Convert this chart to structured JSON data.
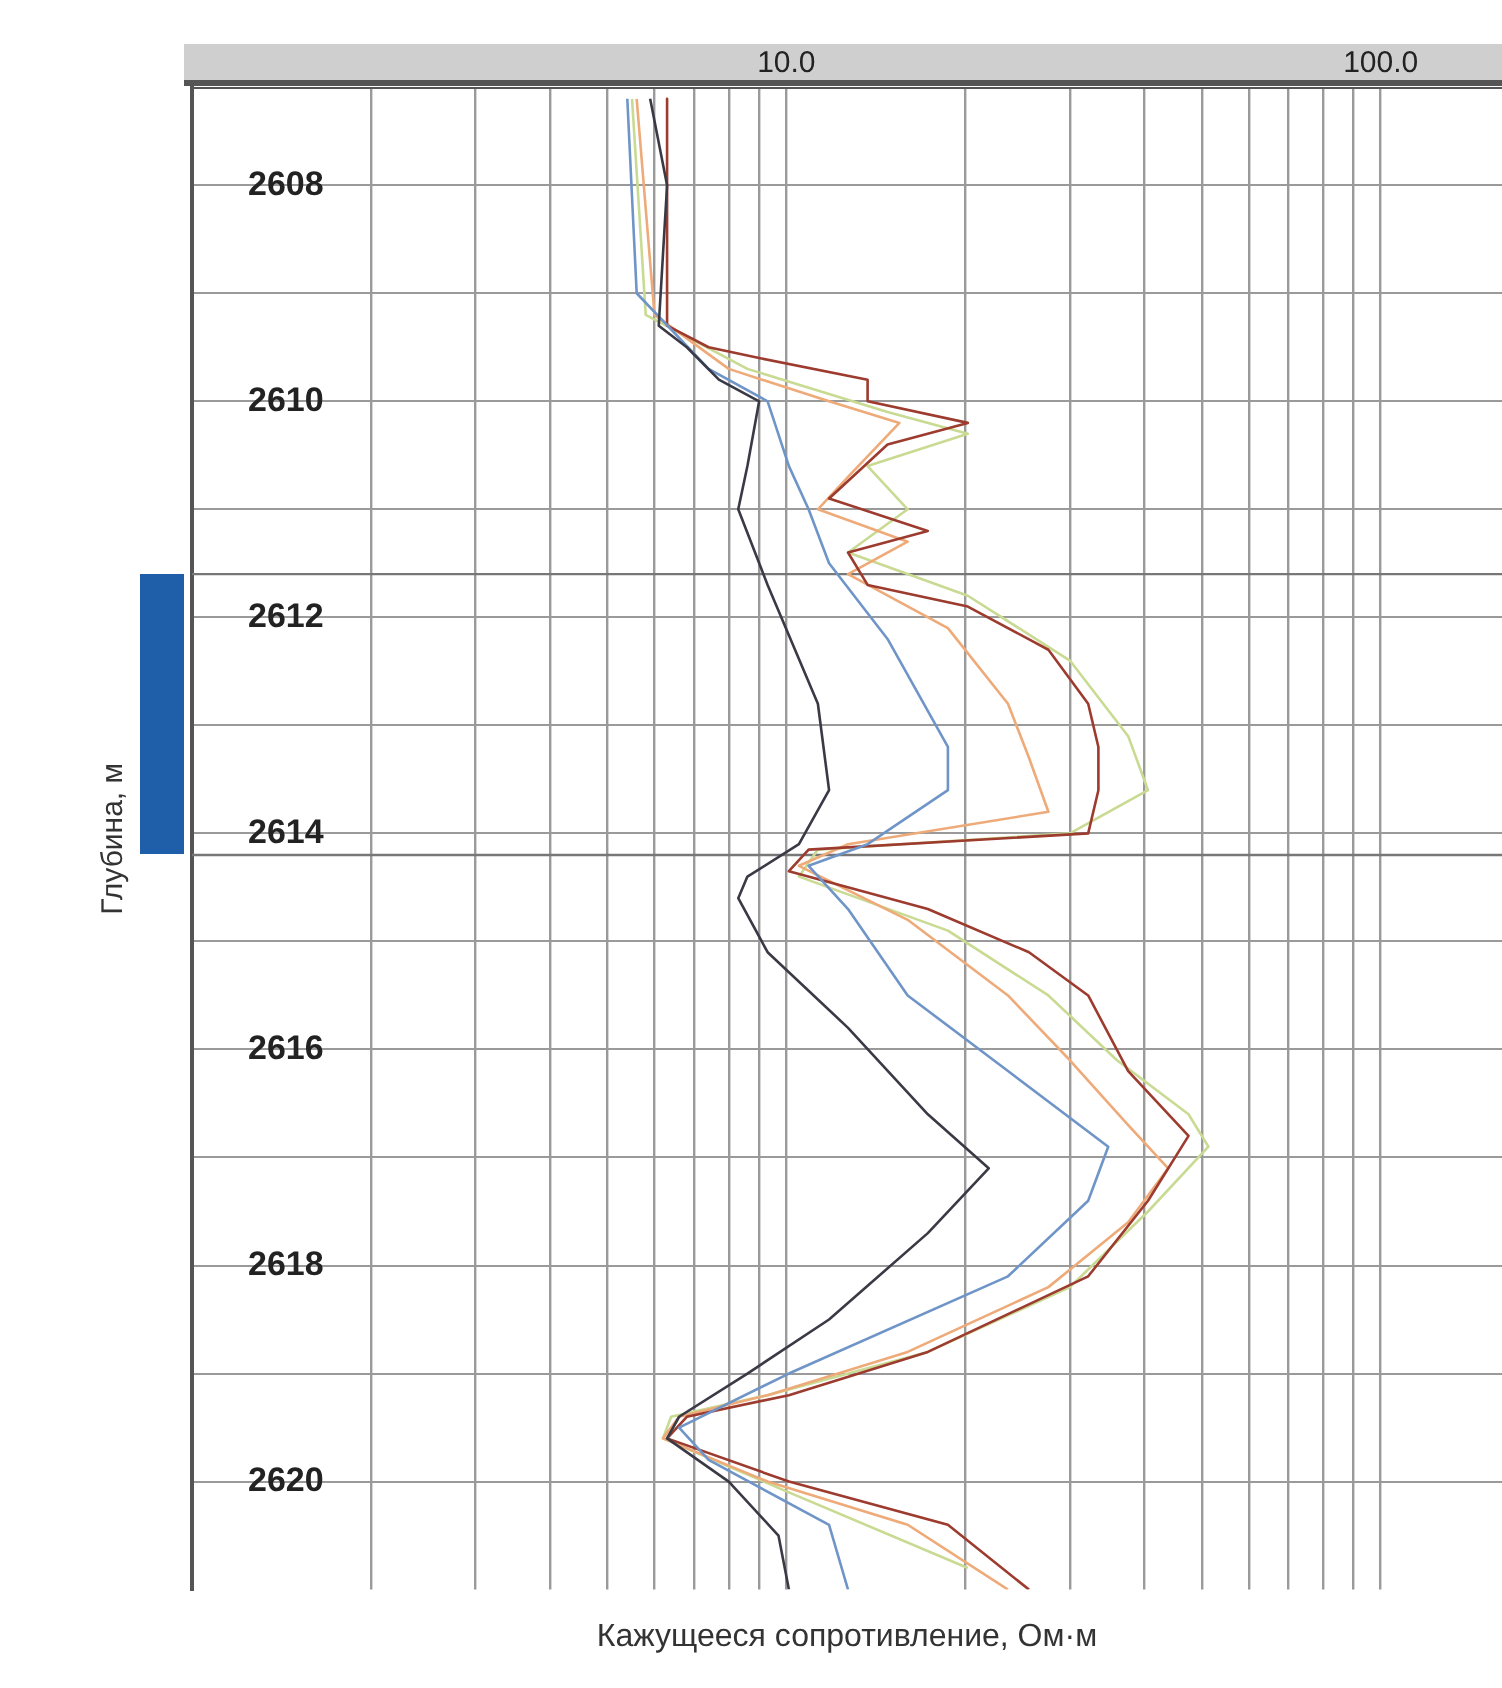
{
  "chart_data": {
    "type": "line",
    "xlabel": "Кажущееся сопротивление, Ом·м",
    "ylabel": "Глубина, м",
    "log": "x",
    "grid": true,
    "marker": "none",
    "line_style": "solid",
    "xlim": [
      1,
      160
    ],
    "ylim": [
      2621,
      2607.1
    ],
    "xticks": [
      {
        "value": 2,
        "label": null
      },
      {
        "value": 3,
        "label": null
      },
      {
        "value": 4,
        "label": null
      },
      {
        "value": 5,
        "label": null
      },
      {
        "value": 6,
        "label": null
      },
      {
        "value": 7,
        "label": null
      },
      {
        "value": 8,
        "label": null
      },
      {
        "value": 9,
        "label": null
      },
      {
        "value": 10,
        "label": "10.0"
      },
      {
        "value": 20,
        "label": null
      },
      {
        "value": 30,
        "label": null
      },
      {
        "value": 40,
        "label": null
      },
      {
        "value": 50,
        "label": null
      },
      {
        "value": 60,
        "label": null
      },
      {
        "value": 70,
        "label": null
      },
      {
        "value": 80,
        "label": null
      },
      {
        "value": 90,
        "label": null
      },
      {
        "value": 100,
        "label": "100.0"
      }
    ],
    "yticks": [
      2608,
      {
        "value": 2609,
        "label": null
      },
      2610,
      {
        "value": 2611,
        "label": null
      },
      2612,
      {
        "value": 2613,
        "label": null
      },
      2614,
      {
        "value": 2615,
        "label": null
      },
      2616,
      {
        "value": 2617,
        "label": null
      },
      2618,
      {
        "value": 2619,
        "label": null
      },
      2620
    ],
    "ref_lines": [
      {
        "axis": "y",
        "value": 2611.6,
        "color": "#777777"
      },
      {
        "axis": "y",
        "value": 2614.2,
        "color": "#777777"
      }
    ],
    "series": [
      {
        "color": "#3a3a46",
        "x": [
          5.9,
          6.3,
          6.1,
          6.8,
          7.7,
          9.0,
          8.6,
          8.3,
          9.3,
          11.3,
          11.8,
          10.5,
          8.6,
          8.3,
          9.3,
          12.7,
          17.3,
          21.9,
          17.3,
          11.8,
          8.6,
          6.6,
          6.3,
          8.0,
          9.7,
          10.1
        ],
        "values": [
          2607.2,
          2608.0,
          2609.3,
          2609.5,
          2609.8,
          2610.0,
          2610.6,
          2611.0,
          2611.7,
          2612.8,
          2613.6,
          2614.1,
          2614.4,
          2614.6,
          2615.1,
          2615.8,
          2616.6,
          2617.1,
          2617.7,
          2618.5,
          2619.0,
          2619.4,
          2619.6,
          2620.0,
          2620.5,
          2621.0
        ]
      },
      {
        "color": "#6f95c8",
        "x": [
          5.4,
          5.6,
          7.4,
          9.3,
          10.1,
          10.9,
          11.8,
          14.8,
          18.7,
          18.7,
          13.7,
          10.9,
          12.7,
          16.0,
          23.6,
          34.8,
          32.2,
          23.6,
          10.1,
          6.6,
          7.4,
          11.8,
          12.7
        ],
        "values": [
          2607.2,
          2609.0,
          2609.7,
          2610.0,
          2610.6,
          2611.0,
          2611.5,
          2612.2,
          2613.2,
          2613.6,
          2614.1,
          2614.3,
          2614.7,
          2615.5,
          2616.2,
          2616.9,
          2617.4,
          2618.1,
          2619.0,
          2619.5,
          2619.8,
          2620.4,
          2621.0
        ]
      },
      {
        "color": "#9c3b2e",
        "x": [
          6.3,
          6.3,
          7.4,
          9.0,
          13.7,
          13.7,
          20.2,
          14.8,
          11.8,
          17.3,
          12.7,
          13.7,
          20.2,
          27.6,
          32.2,
          33.5,
          33.5,
          32.2,
          10.9,
          10.1,
          17.3,
          25.6,
          32.2,
          37.6,
          47.5,
          40.6,
          32.2,
          17.3,
          10.1,
          6.8,
          6.3,
          10.1,
          18.7,
          25.6
        ],
        "values": [
          2607.2,
          2609.3,
          2609.5,
          2609.6,
          2609.8,
          2610.0,
          2610.2,
          2610.4,
          2610.9,
          2611.2,
          2611.4,
          2611.7,
          2611.9,
          2612.3,
          2612.8,
          2613.2,
          2613.6,
          2614.0,
          2614.15,
          2614.35,
          2614.7,
          2615.1,
          2615.5,
          2616.2,
          2616.8,
          2617.4,
          2618.1,
          2618.8,
          2619.2,
          2619.4,
          2619.6,
          2620.0,
          2620.4,
          2621.0
        ]
      },
      {
        "color": "#eeaa78",
        "x": [
          5.6,
          6.0,
          8.0,
          11.8,
          15.5,
          12.7,
          11.3,
          16.0,
          12.7,
          18.7,
          23.6,
          25.6,
          27.6,
          12.7,
          10.5,
          16.0,
          23.6,
          30.0,
          37.6,
          43.9,
          37.6,
          27.6,
          16.0,
          9.3,
          6.6,
          6.2,
          9.3,
          16.0,
          23.6
        ],
        "values": [
          2607.2,
          2609.2,
          2609.7,
          2610.0,
          2610.2,
          2610.7,
          2611.0,
          2611.3,
          2611.6,
          2612.1,
          2612.8,
          2613.3,
          2613.8,
          2614.1,
          2614.3,
          2614.8,
          2615.5,
          2616.1,
          2616.7,
          2617.1,
          2617.6,
          2618.2,
          2618.8,
          2619.2,
          2619.4,
          2619.6,
          2620.0,
          2620.4,
          2621.0
        ]
      },
      {
        "color": "#c9da92",
        "x": [
          5.5,
          5.8,
          8.6,
          14.8,
          20.2,
          13.7,
          16.0,
          12.7,
          20.2,
          30.0,
          37.6,
          40.6,
          30.0,
          11.3,
          10.5,
          18.7,
          27.6,
          36.0,
          47.5,
          51.3,
          40.6,
          30.0,
          17.3,
          9.3,
          6.4,
          6.2,
          10.1,
          20.2
        ],
        "values": [
          2607.2,
          2609.2,
          2609.7,
          2610.1,
          2610.3,
          2610.6,
          2611.0,
          2611.4,
          2611.8,
          2612.4,
          2613.1,
          2613.6,
          2614.0,
          2614.15,
          2614.4,
          2614.9,
          2615.5,
          2616.1,
          2616.6,
          2616.9,
          2617.5,
          2618.2,
          2618.8,
          2619.2,
          2619.4,
          2619.6,
          2620.1,
          2620.8
        ]
      }
    ]
  }
}
